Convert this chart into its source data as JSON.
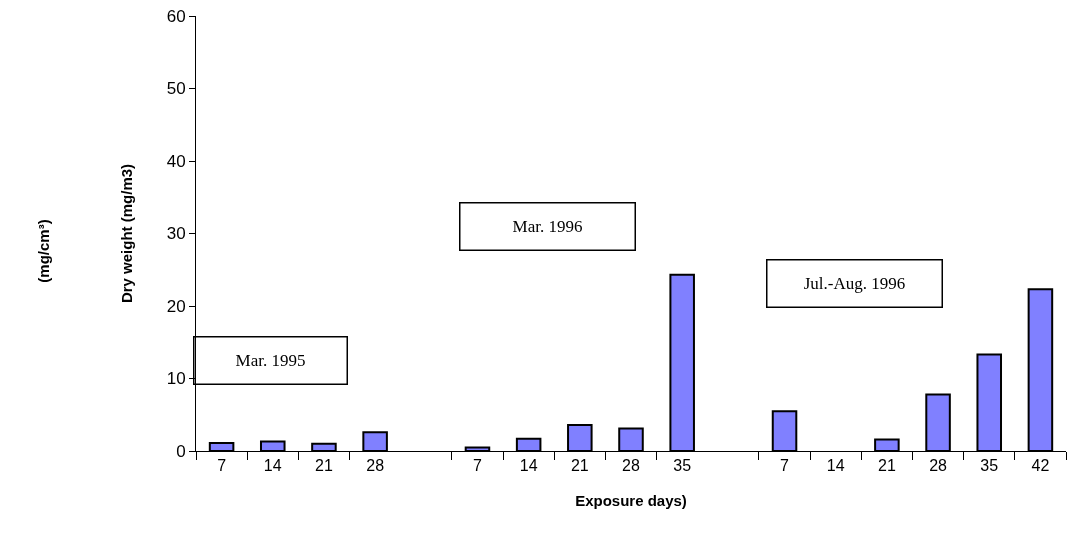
{
  "chart_data": {
    "type": "bar",
    "categories": [
      "7",
      "14",
      "21",
      "28",
      null,
      "7",
      "14",
      "21",
      "28",
      "35",
      null,
      "7",
      "14",
      "21",
      "28",
      "35",
      "42"
    ],
    "values": [
      1.1,
      1.3,
      1.0,
      2.6,
      null,
      0.5,
      1.7,
      3.6,
      3.1,
      24.3,
      null,
      5.5,
      null,
      1.6,
      7.8,
      13.3,
      22.3
    ],
    "color": "#8080ff",
    "ylim": [
      0,
      60
    ],
    "yticks": [
      0,
      10,
      20,
      30,
      40,
      50,
      60
    ],
    "xlabel": "Exposure days)",
    "ylabel": "Dry weight (mg/m3)",
    "annotations": [
      "Mar. 1995",
      "Mar. 1996",
      "Jul.-Aug. 1996",
      "(mg/cm³)"
    ],
    "grid": false
  }
}
